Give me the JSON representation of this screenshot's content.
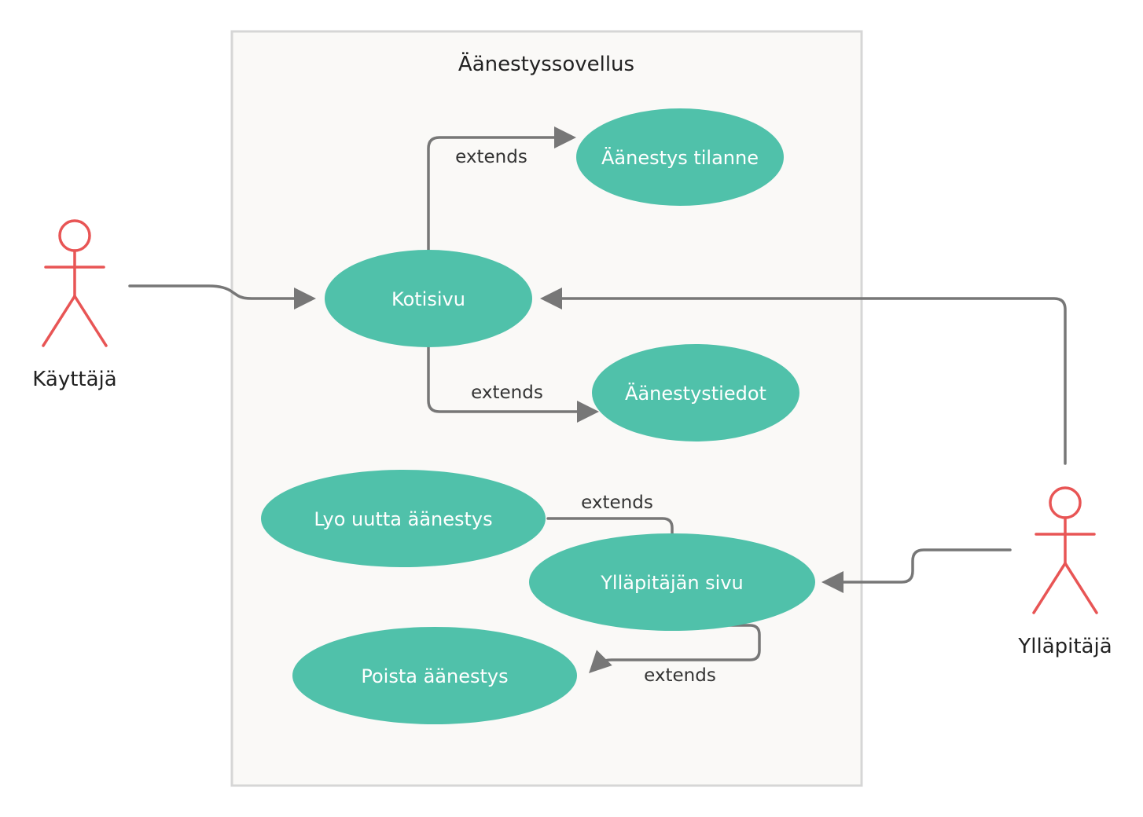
{
  "system": {
    "title": "Äänestyssovellus"
  },
  "actors": {
    "user": {
      "label": "Käyttäjä"
    },
    "admin": {
      "label": "Ylläpitäjä"
    }
  },
  "use_cases": {
    "home": {
      "label": "Kotisivu"
    },
    "status": {
      "label": "Äänestys tilanne"
    },
    "details": {
      "label": "Äänestystiedot"
    },
    "create": {
      "label": "Lyo uutta äänestys"
    },
    "admin_page": {
      "label": "Ylläpitäjän sivu"
    },
    "delete": {
      "label": "Poista äänestys"
    }
  },
  "relations": {
    "home_status": {
      "label": "extends"
    },
    "home_details": {
      "label": "extends"
    },
    "admin_create": {
      "label": "extends"
    },
    "admin_delete": {
      "label": "extends"
    }
  },
  "colors": {
    "use_case_fill": "#50c1aa",
    "actor_stroke": "#e85555",
    "connector": "#777777",
    "system_fill": "#faf9f7",
    "system_border": "#d6d6d6"
  }
}
